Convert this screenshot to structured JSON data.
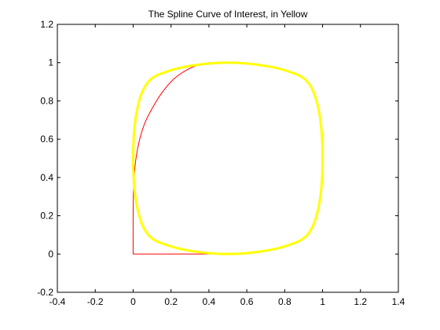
{
  "chart_data": {
    "type": "line",
    "title": "The Spline Curve of Interest, in Yellow",
    "xlabel": "",
    "ylabel": "",
    "xlim": [
      -0.4,
      1.4
    ],
    "ylim": [
      -0.2,
      1.2
    ],
    "grid": false,
    "xticks": [
      -0.4,
      -0.2,
      0,
      0.2,
      0.4,
      0.6,
      0.8,
      1,
      1.2,
      1.4
    ],
    "yticks": [
      -0.2,
      0,
      0.2,
      0.4,
      0.6,
      0.8,
      1,
      1.2
    ],
    "xtick_labels": [
      "-0.4",
      "-0.2",
      "0",
      "0.2",
      "0.4",
      "0.6",
      "0.8",
      "1",
      "1.2",
      "1.4"
    ],
    "ytick_labels": [
      "-0.2",
      "0",
      "0.2",
      "0.4",
      "0.6",
      "0.8",
      "1",
      "1.2"
    ],
    "series": [
      {
        "color": "#ff0000",
        "width": 1,
        "closed": false,
        "x": [
          0.4,
          0.2,
          0.0,
          0.0,
          0.002,
          0.01,
          0.03,
          0.06,
          0.1,
          0.15,
          0.21,
          0.28,
          0.35,
          0.4
        ],
        "y": [
          0.0,
          0.0,
          0.0,
          0.2,
          0.33,
          0.46,
          0.58,
          0.68,
          0.76,
          0.84,
          0.91,
          0.96,
          0.99,
          1.0
        ]
      },
      {
        "color": "#ffff00",
        "width": 3,
        "closed": true,
        "x": [
          0.5,
          0.65,
          0.8,
          0.92,
          0.98,
          1.0,
          0.98,
          0.92,
          0.8,
          0.65,
          0.5,
          0.35,
          0.2,
          0.08,
          0.02,
          0.0,
          0.02,
          0.08,
          0.2,
          0.35
        ],
        "y": [
          0.0,
          0.01,
          0.04,
          0.1,
          0.25,
          0.5,
          0.75,
          0.9,
          0.96,
          0.99,
          1.0,
          0.99,
          0.96,
          0.9,
          0.75,
          0.5,
          0.25,
          0.1,
          0.04,
          0.01
        ]
      }
    ]
  }
}
